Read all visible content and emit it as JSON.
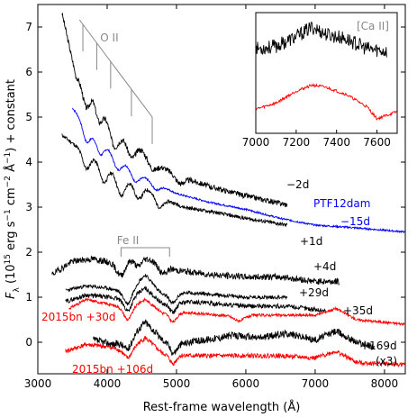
{
  "chart_data": {
    "type": "line",
    "xlabel": "Rest-frame wavelength (Å)",
    "ylabel_parts": [
      "F",
      "λ",
      " (10",
      "15",
      " erg s",
      "−1",
      " cm",
      "−2",
      " Å",
      "−1",
      ") + constant"
    ],
    "xlim": [
      3000,
      8300
    ],
    "ylim": [
      -0.7,
      7.5
    ],
    "x_ticks": [
      3000,
      4000,
      5000,
      6000,
      7000,
      8000
    ],
    "y_ticks": [
      0,
      1,
      2,
      3,
      4,
      5,
      6,
      7
    ],
    "colors": {
      "black": "#000000",
      "blue": "#0000ff",
      "red": "#ff0000",
      "gray": "#888888"
    },
    "series": [
      {
        "label": "−2d",
        "color": "#000000",
        "x_range": [
          3350,
          6600
        ],
        "anchors": [
          [
            3350,
            7.3
          ],
          [
            3550,
            5.9
          ],
          [
            3800,
            5.5
          ],
          [
            4000,
            5.0
          ],
          [
            4200,
            4.6
          ],
          [
            4500,
            4.3
          ],
          [
            4800,
            3.9
          ],
          [
            5000,
            3.7
          ],
          [
            5500,
            3.45
          ],
          [
            6000,
            3.25
          ],
          [
            6600,
            3.05
          ]
        ],
        "dips": [
          [
            3700,
            0.45,
            50
          ],
          [
            3880,
            0.4,
            50
          ],
          [
            4100,
            0.45,
            60
          ],
          [
            4350,
            0.35,
            60
          ],
          [
            4650,
            0.25,
            70
          ],
          [
            5050,
            0.15,
            60
          ]
        ],
        "noise": 0.06,
        "seed": 3
      },
      {
        "label": "PTF12dam",
        "color": "#0000ff",
        "x_range": [
          3500,
          8300
        ],
        "anchors": [
          [
            3500,
            5.2
          ],
          [
            3800,
            4.6
          ],
          [
            4100,
            4.2
          ],
          [
            4500,
            3.7
          ],
          [
            5000,
            3.3
          ],
          [
            5500,
            3.1
          ],
          [
            6000,
            2.95
          ],
          [
            6500,
            2.75
          ],
          [
            7000,
            2.6
          ],
          [
            7500,
            2.55
          ],
          [
            8300,
            2.45
          ]
        ],
        "dips": [
          [
            3700,
            0.35,
            50
          ],
          [
            3900,
            0.3,
            50
          ],
          [
            4150,
            0.3,
            60
          ],
          [
            4400,
            0.25,
            60
          ],
          [
            4700,
            0.15,
            60
          ]
        ],
        "noise": 0.02,
        "seed": 7
      },
      {
        "label": "−15d",
        "color": "#0000ff",
        "x_range": null
      },
      {
        "label": "+1d",
        "color": "#000000",
        "x_range": [
          3350,
          6600
        ],
        "anchors": [
          [
            3350,
            4.6
          ],
          [
            3600,
            4.3
          ],
          [
            3900,
            4.0
          ],
          [
            4200,
            3.7
          ],
          [
            4500,
            3.5
          ],
          [
            4800,
            3.2
          ],
          [
            5100,
            3.0
          ],
          [
            5500,
            2.9
          ],
          [
            6000,
            2.75
          ],
          [
            6600,
            2.6
          ]
        ],
        "dips": [
          [
            3700,
            0.35,
            50
          ],
          [
            3950,
            0.4,
            55
          ],
          [
            4200,
            0.45,
            60
          ],
          [
            4450,
            0.35,
            60
          ],
          [
            4750,
            0.25,
            60
          ]
        ],
        "noise": 0.04,
        "seed": 11
      },
      {
        "label": "+4d",
        "color": "#000000",
        "x_range": [
          3200,
          7350
        ],
        "anchors": [
          [
            3200,
            1.5
          ],
          [
            3500,
            1.8
          ],
          [
            3800,
            1.85
          ],
          [
            4100,
            1.75
          ],
          [
            4500,
            1.9
          ],
          [
            5000,
            1.6
          ],
          [
            5500,
            1.5
          ],
          [
            6000,
            1.45
          ],
          [
            6500,
            1.45
          ],
          [
            7000,
            1.35
          ],
          [
            7350,
            1.35
          ]
        ],
        "dips": [
          [
            4200,
            0.3,
            60
          ],
          [
            4450,
            0.2,
            50
          ],
          [
            4800,
            0.2,
            60
          ]
        ],
        "noise": 0.07,
        "seed": 19
      },
      {
        "label": "+29d",
        "color": "#000000",
        "x_range": [
          3400,
          6600
        ],
        "anchors": [
          [
            3400,
            1.15
          ],
          [
            3700,
            1.25
          ],
          [
            4000,
            1.2
          ],
          [
            4300,
            1.1
          ],
          [
            4550,
            1.5
          ],
          [
            4800,
            1.05
          ],
          [
            5200,
            1.1
          ],
          [
            5600,
            1.05
          ],
          [
            6000,
            1.0
          ],
          [
            6600,
            1.0
          ]
        ],
        "dips": [
          [
            4300,
            0.25,
            60
          ],
          [
            4950,
            0.2,
            50
          ]
        ],
        "noise": 0.04,
        "seed": 23
      },
      {
        "label": "+35d",
        "color": "#000000",
        "x_range": [
          3400,
          7150
        ],
        "anchors": [
          [
            3400,
            0.9
          ],
          [
            3700,
            1.05
          ],
          [
            4000,
            1.0
          ],
          [
            4300,
            0.95
          ],
          [
            4550,
            1.2
          ],
          [
            4800,
            0.85
          ],
          [
            5200,
            0.9
          ],
          [
            5600,
            0.85
          ],
          [
            6000,
            0.8
          ],
          [
            6600,
            0.8
          ],
          [
            7150,
            0.7
          ]
        ],
        "dips": [
          [
            4300,
            0.25,
            60
          ],
          [
            4950,
            0.2,
            50
          ]
        ],
        "noise": 0.05,
        "seed": 29
      },
      {
        "label": "2015bn +30d",
        "color": "#ff0000",
        "x_range": [
          3450,
          8300
        ],
        "anchors": [
          [
            3450,
            0.75
          ],
          [
            3700,
            0.95
          ],
          [
            4000,
            0.85
          ],
          [
            4300,
            0.75
          ],
          [
            4550,
            0.95
          ],
          [
            4800,
            0.65
          ],
          [
            5200,
            0.65
          ],
          [
            5600,
            0.6
          ],
          [
            6000,
            0.6
          ],
          [
            6500,
            0.6
          ],
          [
            7000,
            0.6
          ],
          [
            7300,
            0.75
          ],
          [
            7600,
            0.5
          ],
          [
            8300,
            0.4
          ]
        ],
        "dips": [
          [
            4300,
            0.25,
            60
          ],
          [
            4950,
            0.2,
            50
          ],
          [
            5900,
            0.12,
            80
          ]
        ],
        "noise": 0.03,
        "seed": 31
      },
      {
        "label": "+169d",
        "color": "#000000",
        "x_range": [
          3800,
          7850
        ],
        "anchors": [
          [
            3800,
            0.05
          ],
          [
            4100,
            -0.05
          ],
          [
            4300,
            0.05
          ],
          [
            4550,
            0.45
          ],
          [
            4800,
            0.05
          ],
          [
            5000,
            -0.05
          ],
          [
            5400,
            0.05
          ],
          [
            5800,
            0.15
          ],
          [
            6200,
            0.1
          ],
          [
            6600,
            0.2
          ],
          [
            7000,
            0.05
          ],
          [
            7300,
            0.25
          ],
          [
            7600,
            0.0
          ],
          [
            7850,
            -0.1
          ]
        ],
        "dips": [
          [
            4300,
            0.2,
            60
          ],
          [
            4950,
            0.2,
            50
          ]
        ],
        "noise": 0.08,
        "seed": 37
      },
      {
        "label": "(x3)",
        "color": "#000000",
        "x_range": null
      },
      {
        "label": "2015bn +106d",
        "color": "#ff0000",
        "x_range": [
          3400,
          8300
        ],
        "anchors": [
          [
            3400,
            -0.2
          ],
          [
            3700,
            -0.05
          ],
          [
            4000,
            -0.1
          ],
          [
            4300,
            -0.2
          ],
          [
            4550,
            0.1
          ],
          [
            4800,
            -0.25
          ],
          [
            5200,
            -0.3
          ],
          [
            5600,
            -0.3
          ],
          [
            6000,
            -0.3
          ],
          [
            6500,
            -0.3
          ],
          [
            7000,
            -0.35
          ],
          [
            7300,
            -0.2
          ],
          [
            7600,
            -0.45
          ],
          [
            8300,
            -0.5
          ]
        ],
        "dips": [
          [
            4300,
            0.15,
            60
          ],
          [
            4950,
            0.2,
            50
          ]
        ],
        "noise": 0.05,
        "seed": 41
      }
    ],
    "annotations": {
      "oii": {
        "text": "O II",
        "color": "#888888",
        "lines_x": [
          3650,
          3850,
          4050,
          4350,
          4650
        ]
      },
      "feii": {
        "text": "Fe II",
        "color": "#888888",
        "lines_x": [
          4200,
          4900
        ]
      }
    },
    "inset": {
      "label": "[Ca II]",
      "xlim": [
        7000,
        7700
      ],
      "x_ticks": [
        7000,
        7200,
        7400,
        7600
      ],
      "series": [
        {
          "color": "#000000",
          "anchors": [
            [
              7000,
              0.7
            ],
            [
              7100,
              0.72
            ],
            [
              7200,
              0.8
            ],
            [
              7280,
              0.88
            ],
            [
              7350,
              0.82
            ],
            [
              7450,
              0.78
            ],
            [
              7550,
              0.7
            ],
            [
              7650,
              0.68
            ]
          ],
          "noise": 0.06,
          "seed": 53
        },
        {
          "color": "#ff0000",
          "anchors": [
            [
              7000,
              0.2
            ],
            [
              7100,
              0.25
            ],
            [
              7200,
              0.35
            ],
            [
              7280,
              0.4
            ],
            [
              7350,
              0.38
            ],
            [
              7450,
              0.32
            ],
            [
              7550,
              0.22
            ],
            [
              7600,
              0.12
            ],
            [
              7650,
              0.15
            ],
            [
              7700,
              0.18
            ]
          ],
          "noise": 0.012,
          "seed": 59
        }
      ]
    }
  }
}
